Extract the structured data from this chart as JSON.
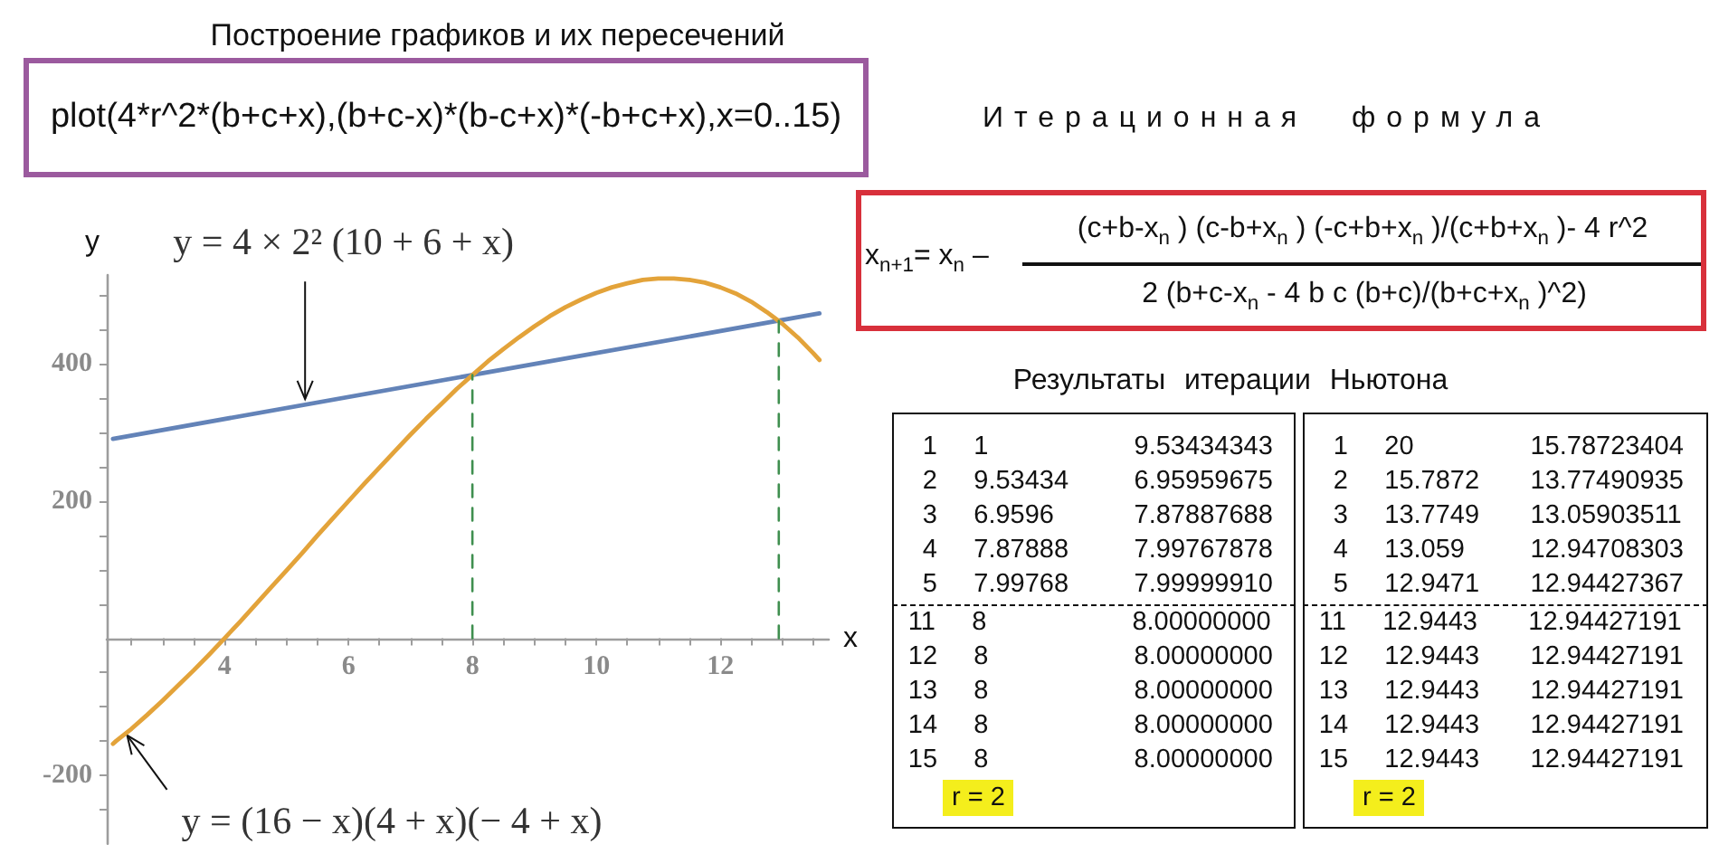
{
  "chart_data": [
    {
      "type": "line",
      "title": "Построение графиков и их пересечений",
      "xlabel": "x",
      "ylabel": "y",
      "series": [
        {
          "color": "#6383b8",
          "x": [
            2.2,
            13.6
          ],
          "values": [
            291,
            474
          ]
        },
        {
          "color": "#e3a33a",
          "x": [
            2.2,
            2.25,
            2.5,
            2.75,
            3,
            3.25,
            3.5,
            3.75,
            4,
            4.25,
            4.5,
            4.75,
            5,
            5.25,
            5.5,
            5.75,
            6,
            6.25,
            6.5,
            6.75,
            7,
            7.25,
            7.5,
            7.75,
            8,
            8.25,
            8.5,
            8.75,
            9,
            9.25,
            9.5,
            9.75,
            10,
            10.25,
            10.5,
            10.75,
            11,
            11.25,
            11.5,
            11.75,
            12,
            12.25,
            12.5,
            12.75,
            13,
            13.25,
            13.5,
            13.6
          ],
          "values": [
            -154,
            -150,
            -132,
            -112,
            -91,
            -69,
            -47,
            -24,
            0,
            24,
            49,
            74,
            99,
            124,
            150,
            175,
            200,
            225,
            249,
            273,
            297,
            320,
            342,
            364,
            384,
            404,
            422,
            439,
            455,
            470,
            483,
            494,
            504,
            512,
            518,
            523,
            525,
            525,
            523,
            519,
            512,
            503,
            491,
            476,
            459,
            439,
            416,
            406
          ]
        },
        {
          "color": "#3f8f4f",
          "x": [
            8,
            8
          ],
          "values": [
            0,
            384
          ],
          "line_style": "dashed"
        },
        {
          "color": "#3f8f4f",
          "x": [
            12.944,
            12.944
          ],
          "values": [
            0,
            463
          ],
          "line_style": "dashed"
        }
      ],
      "xlim": [
        2.1,
        13.75
      ],
      "xticks": [
        {
          "value": 2.5,
          "label": null
        },
        {
          "value": 3,
          "label": null
        },
        {
          "value": 3.5,
          "label": null
        },
        4,
        {
          "value": 4.5,
          "label": null
        },
        {
          "value": 5,
          "label": null
        },
        {
          "value": 5.5,
          "label": null
        },
        6,
        {
          "value": 6.5,
          "label": null
        },
        {
          "value": 7,
          "label": null
        },
        {
          "value": 7.5,
          "label": null
        },
        8,
        {
          "value": 8.5,
          "label": null
        },
        {
          "value": 9,
          "label": null
        },
        {
          "value": 9.5,
          "label": null
        },
        10,
        {
          "value": 10.5,
          "label": null
        },
        {
          "value": 11,
          "label": null
        },
        {
          "value": 11.5,
          "label": null
        },
        12,
        {
          "value": 12.5,
          "label": null
        },
        {
          "value": 13,
          "label": null
        },
        {
          "value": 13.5,
          "label": null
        }
      ],
      "ylim": [
        -300,
        530
      ],
      "yticks": [
        {
          "value": -250,
          "label": null
        },
        -200,
        {
          "value": -150,
          "label": null
        },
        {
          "value": -100,
          "label": null
        },
        {
          "value": -50,
          "label": null
        },
        {
          "value": 50,
          "label": null
        },
        {
          "value": 100,
          "label": null
        },
        {
          "value": 150,
          "label": null
        },
        200,
        {
          "value": 250,
          "label": null
        },
        {
          "value": 300,
          "label": null
        },
        {
          "value": 350,
          "label": null
        },
        400,
        {
          "value": 450,
          "label": null
        },
        {
          "value": 500,
          "label": null
        }
      ],
      "grid": false,
      "marker": "none",
      "line_style": "solid",
      "annotations": [
        "plot(4*r^2*(b+c+x),(b+c-x)*(b-c+x)*(-b+c+x),x=0..15)",
        {
          "text": "y = 4 × 2² (10 + 6 + x)",
          "x": 5.3,
          "y": 341
        },
        {
          "text": "y = (16 − x)(4 + x)(− 4 + x)",
          "x": 2.4,
          "y": -139
        }
      ]
    },
    {
      "type": "other",
      "title": "Итерационная формула",
      "annotations": [
        "x$_{n+1}$= x$_{n}$ –",
        "(c+b-x$_{n}$ ) (c-b+x$_{n}$ ) (-c+b+x$_{n}$ )/(c+b+x$_{n}$ )- 4 r^2",
        "2 (b+c-x$_{n}$ - 4 b c (b+c)/(b+c+x$_{n}$ )^2)"
      ]
    },
    {
      "type": "other",
      "title": "Результаты итерации Ньютона",
      "annotations": [
        "1 1 9.53434343",
        "2 9.53434 6.95959675",
        "3 6.9596 7.87887688",
        "4 7.87888 7.99767878",
        "5 7.99768 7.99999910",
        "11 8 8.00000000",
        "12 8 8.00000000",
        "13 8 8.00000000",
        "14 8 8.00000000",
        "15 8 8.00000000",
        "r = 2"
      ]
    },
    {
      "type": "other",
      "annotations": [
        "1 20 15.78723404",
        "2 15.7872 13.77490935",
        "3 13.7749 13.05903511",
        "4 13.059 12.94708303",
        "5 12.9471 12.94427367",
        "11 12.9443 12.94427191",
        "12 12.9443 12.94427191",
        "13 12.9443 12.94427191",
        "14 12.9443 12.94427191",
        "15 12.9443 12.94427191",
        "r = 2"
      ]
    }
  ]
}
